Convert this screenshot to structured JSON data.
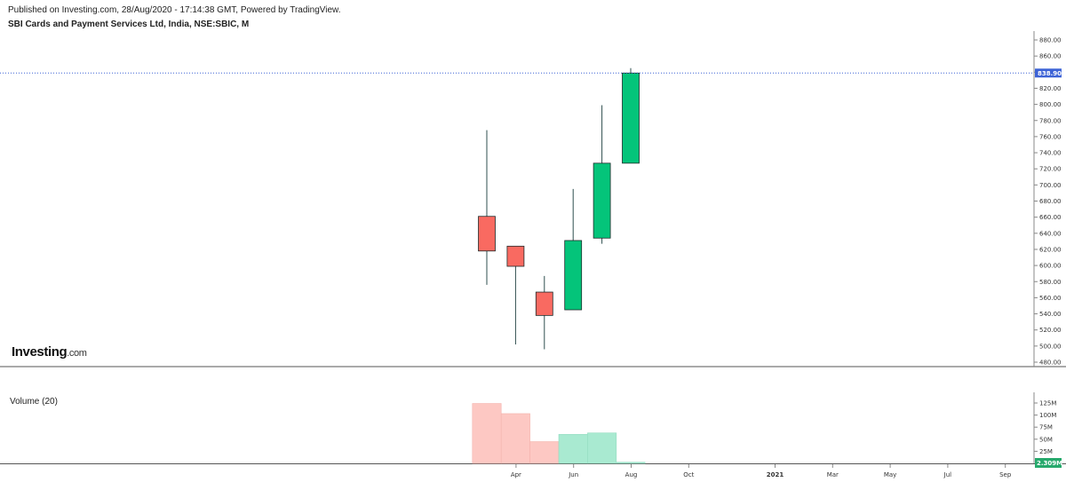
{
  "header": {
    "published": "Published on Investing.com, 28/Aug/2020 - 17:14:38 GMT, Powered by TradingView.",
    "title": "SBI Cards and Payment Services Ltd, India, NSE:SBIC, M"
  },
  "logo": {
    "main": "Investing",
    "suffix": ".com"
  },
  "volume_panel": {
    "label": "Volume (20)"
  },
  "colors": {
    "up": "#04c47a",
    "down": "#f96a61",
    "up_vol": "#a9ead1",
    "down_vol": "#fdc8c3",
    "price_line": "#3d63d6",
    "vol_badge": "#26a96c"
  },
  "chart_data": [
    {
      "type": "candlestick",
      "title": "SBI Cards and Payment Services Ltd, India, NSE:SBIC, M",
      "ylim": [
        480,
        880
      ],
      "yticks": [
        480,
        500,
        520,
        540,
        560,
        580,
        600,
        620,
        640,
        660,
        680,
        700,
        720,
        740,
        760,
        780,
        800,
        820,
        840,
        860,
        880
      ],
      "ytick_labels": [
        "480.00",
        "500.00",
        "520.00",
        "540.00",
        "560.00",
        "580.00",
        "600.00",
        "620.00",
        "640.00",
        "660.00",
        "680.00",
        "700.00",
        "720.00",
        "740.00",
        "760.00",
        "780.00",
        "800.00",
        "820.00",
        "840.00",
        "860.00",
        "880.00"
      ],
      "current_price": 838.9,
      "current_price_label": "838.90",
      "candles": [
        {
          "month": "2020-03",
          "open": 661,
          "high": 768,
          "low": 576,
          "close": 618
        },
        {
          "month": "2020-04",
          "open": 624,
          "high": 624,
          "low": 502,
          "close": 599
        },
        {
          "month": "2020-05",
          "open": 567,
          "high": 587,
          "low": 496,
          "close": 538
        },
        {
          "month": "2020-06",
          "open": 545,
          "high": 695,
          "low": 545,
          "close": 631
        },
        {
          "month": "2020-07",
          "open": 634,
          "high": 799,
          "low": 627,
          "close": 727
        },
        {
          "month": "2020-08",
          "open": 727,
          "high": 845,
          "low": 727,
          "close": 838.9
        }
      ],
      "x_ticks": [
        {
          "label": "Apr",
          "index": 1
        },
        {
          "label": "Jun",
          "index": 3
        },
        {
          "label": "Aug",
          "index": 5
        },
        {
          "label": "Oct",
          "index": 7
        },
        {
          "label": "2021",
          "index": 10,
          "bold": true
        },
        {
          "label": "Mar",
          "index": 12
        },
        {
          "label": "May",
          "index": 14
        },
        {
          "label": "Jul",
          "index": 16
        },
        {
          "label": "Sep",
          "index": 18
        }
      ]
    },
    {
      "type": "bar",
      "title": "Volume (20)",
      "ylim": [
        0,
        125
      ],
      "yticks": [
        25,
        50,
        75,
        100,
        125
      ],
      "ytick_labels": [
        "25M",
        "50M",
        "75M",
        "100M",
        "125M"
      ],
      "current_volume_label": "2.309M",
      "values_millions": [
        124,
        103,
        45,
        60,
        63,
        2.309
      ],
      "directions": [
        "down",
        "down",
        "down",
        "up",
        "up",
        "up"
      ]
    }
  ]
}
